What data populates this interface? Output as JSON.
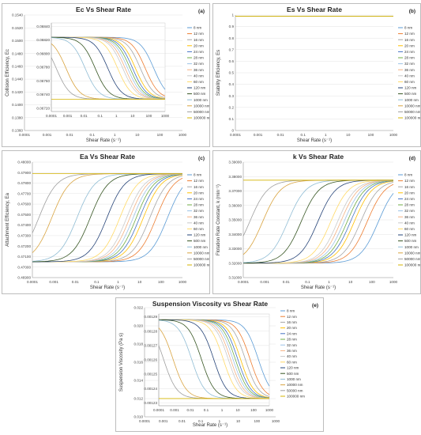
{
  "figure": {
    "legend_labels": [
      "8 nm",
      "12 nm",
      "16 nm",
      "20 nm",
      "24 nm",
      "28 nm",
      "32 nm",
      "36 nm",
      "40 nm",
      "60 nm",
      "120 nm",
      "500 nm",
      "1000 nm",
      "10000 nm",
      "50000 nm",
      "100000 nm"
    ],
    "legend_labels_e": [
      "8 nm",
      "12 nm",
      "16 nm",
      "20 nm",
      "24 nm",
      "28 nm",
      "32 nm",
      "36 nm",
      "40 nm",
      "60 nm",
      "120 nm",
      "500 nm",
      "1000 nm",
      "10000 nm",
      "50000 nm",
      "100000 nm"
    ],
    "series_colors": [
      "#5b9bd5",
      "#ed7d31",
      "#a5a5a5",
      "#ffc000",
      "#4472c4",
      "#70ad47",
      "#9dc3e6",
      "#f4b183",
      "#c9c9c9",
      "#ffd966",
      "#264478",
      "#375623",
      "#8fbcd4",
      "#d9a441",
      "#9e9e9e",
      "#d4b400"
    ]
  },
  "chart_data": [
    {
      "id": "a",
      "type": "line",
      "title": "Ec Vs Shear Rate",
      "panel_label": "(a)",
      "xlabel": "Shear Rate (s⁻¹)",
      "ylabel": "Collision Efficiency, Ec",
      "x_scale": "log",
      "xlim": [
        0.0001,
        1000
      ],
      "x_ticks": [
        "0.0001",
        "0.001",
        "0.01",
        "0.1",
        "1",
        "10",
        "100",
        "1000"
      ],
      "y_ticks": [
        "0.1360",
        "0.1380",
        "0.1400",
        "0.1420",
        "0.1440",
        "0.1460",
        "0.1480",
        "0.1500",
        "0.1520",
        "0.1540"
      ],
      "ylim": [
        0.136,
        0.154
      ],
      "inset": {
        "xlim": [
          0.0001,
          1000
        ],
        "ylim": [
          0.06715,
          0.06845
        ],
        "x_ticks": [
          "0.0001",
          "0.001",
          "0.01",
          "0.1",
          "1",
          "10",
          "100",
          "1000"
        ],
        "y_ticks": [
          "0.06720",
          "0.06740",
          "0.06760",
          "0.06780",
          "0.06800",
          "0.06820",
          "0.06840"
        ]
      },
      "curve": "decreasing",
      "high": 0.06824,
      "low": 0.06733,
      "midpoints": [
        200,
        60,
        30,
        15,
        10,
        7,
        5,
        3.5,
        2.5,
        1.2,
        0.3,
        0.05,
        0.012,
        0.0008,
        0.0002,
        0.0001
      ],
      "flat_series": [
        {
          "name": "100000 nm",
          "value": 0.06733
        }
      ]
    },
    {
      "id": "b",
      "type": "line",
      "title": "Es Vs Shear Rate",
      "panel_label": "(b)",
      "xlabel": "Shear Rate (s⁻¹)",
      "ylabel": "Stability Efficiency, Es",
      "x_scale": "log",
      "xlim": [
        0.0001,
        1000
      ],
      "x_ticks": [
        "0.0001",
        "0.001",
        "0.01",
        "0.1",
        "1",
        "10",
        "100",
        "1000"
      ],
      "y_ticks": [
        "0",
        "0.1",
        "0.2",
        "0.3",
        "0.4",
        "0.5",
        "0.6",
        "0.7",
        "0.8",
        "0.9",
        "1"
      ],
      "ylim": [
        0,
        1
      ],
      "curve": "constant",
      "value": 0.99
    },
    {
      "id": "c",
      "type": "line",
      "title": "Ea Vs Shear Rate",
      "panel_label": "(c)",
      "xlabel": "Shear Rate (s⁻¹)",
      "ylabel": "Attachment Efficiency, Ea",
      "x_scale": "log",
      "xlim": [
        0.0001,
        1000
      ],
      "x_ticks": [
        "0.0001",
        "0.001",
        "0.01",
        "0.1",
        "1",
        "10",
        "100",
        "1000"
      ],
      "y_ticks": [
        "0.46900",
        "0.47000",
        "0.47100",
        "0.47200",
        "0.47300",
        "0.47400",
        "0.47500",
        "0.47600",
        "0.47700",
        "0.47800",
        "0.47900",
        "0.48000"
      ],
      "ylim": [
        0.469,
        0.48
      ],
      "curve": "increasing",
      "high": 0.4789,
      "low": 0.4705,
      "midpoints": [
        200,
        60,
        30,
        15,
        10,
        7,
        5,
        3.5,
        2.5,
        1.2,
        0.3,
        0.05,
        0.012,
        0.0008,
        0.0002,
        0.0001
      ],
      "flat_series": [
        {
          "name": "100000 nm",
          "value": 0.4789
        }
      ]
    },
    {
      "id": "d",
      "type": "line",
      "title": "k Vs Shear Rate",
      "panel_label": "(d)",
      "xlabel": "Shear Rate (s⁻¹)",
      "ylabel": "Flotation Rate Constant, k (min⁻¹)",
      "x_scale": "log",
      "xlim": [
        0.0001,
        1000
      ],
      "x_ticks": [
        "0.0001",
        "0.001",
        "0.01",
        "0.1",
        "1",
        "10",
        "100",
        "1000"
      ],
      "y_ticks": [
        "3.31000",
        "3.32000",
        "3.33000",
        "3.34000",
        "3.35000",
        "3.36000",
        "3.37000",
        "3.38000",
        "3.39000"
      ],
      "ylim": [
        3.31,
        3.39
      ],
      "curve": "increasing",
      "high": 3.3775,
      "low": 3.32,
      "midpoints": [
        200,
        60,
        30,
        15,
        10,
        7,
        5,
        3.5,
        2.5,
        1.2,
        0.3,
        0.05,
        0.012,
        0.0008,
        0.0002,
        0.0001
      ],
      "flat_series": [
        {
          "name": "100000 nm",
          "value": 3.3775
        }
      ]
    },
    {
      "id": "e",
      "type": "line",
      "title": "Suspension Viscosity vs Shear Rate",
      "panel_label": "(e)",
      "xlabel": "Shear Rate (s⁻¹)",
      "ylabel": "Suspension Viscosity (Pa s)",
      "x_scale": "log",
      "xlim": [
        0.0001,
        1000
      ],
      "x_ticks": [
        "0.0001",
        "0.001",
        "0.01",
        "0.1",
        "1",
        "10",
        "100",
        "1000"
      ],
      "y_ticks": [
        "0.010",
        "0.012",
        "0.014",
        "0.016",
        "0.018",
        "0.020",
        "0.022"
      ],
      "ylim": [
        0.01,
        0.022
      ],
      "inset": {
        "xlim": [
          0.0001,
          1000
        ],
        "ylim": [
          0.001228,
          0.001292
        ],
        "x_ticks": [
          "0.0001",
          "0.001",
          "0.01",
          "0.1",
          "1",
          "10",
          "100",
          "1000"
        ],
        "y_ticks": [
          "0.00123",
          "0.00124",
          "0.00125",
          "0.00126",
          "0.00127",
          "0.00128",
          "0.00129"
        ]
      },
      "curve": "decreasing",
      "high": 0.001288,
      "low": 0.001233,
      "midpoints": [
        200,
        60,
        30,
        15,
        10,
        7,
        5,
        3.5,
        2.5,
        1.2,
        0.3,
        0.05,
        0.012,
        0.0008,
        0.0002,
        0.0001
      ],
      "flat_series": [
        {
          "name": "100000 nm",
          "value": 0.001233
        }
      ]
    }
  ]
}
